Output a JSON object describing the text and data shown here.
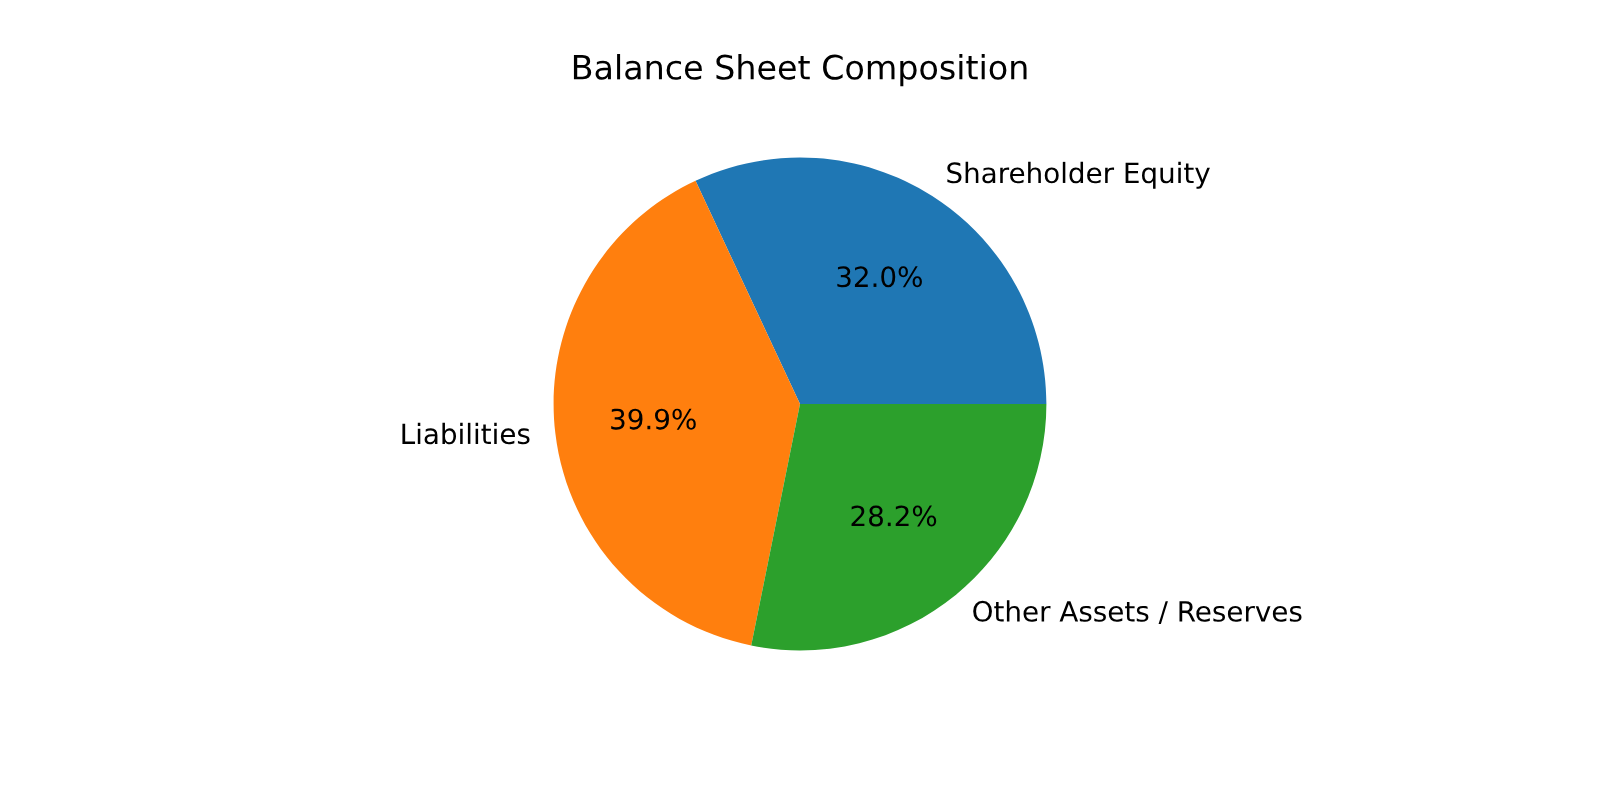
{
  "chart_data": {
    "type": "pie",
    "title": "Balance Sheet Composition",
    "categories": [
      "Shareholder Equity",
      "Liabilities",
      "Other Assets / Reserves"
    ],
    "values": [
      32.0,
      39.9,
      28.2
    ],
    "colors": [
      "#1f77b4",
      "#ff7f0e",
      "#2ca02c"
    ],
    "value_labels": [
      "32.0%",
      "39.9%",
      "28.2%"
    ]
  }
}
